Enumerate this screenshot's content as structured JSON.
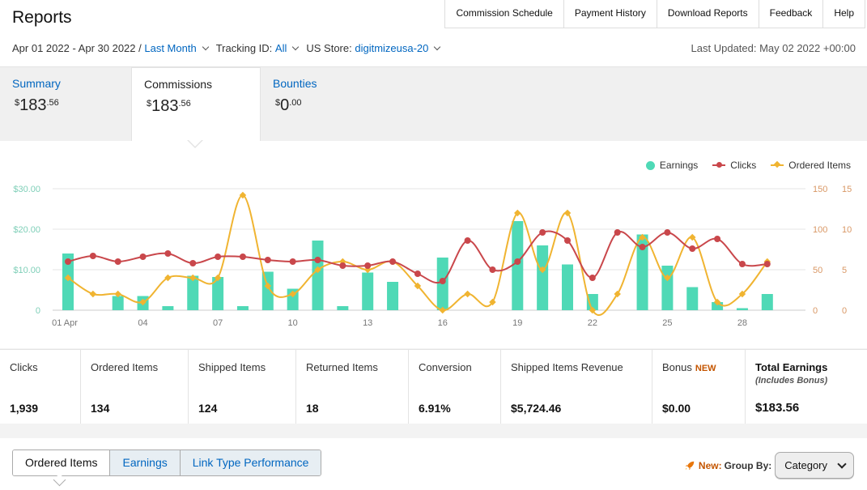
{
  "header": {
    "title": "Reports",
    "nav": [
      "Commission Schedule",
      "Payment History",
      "Download Reports",
      "Feedback",
      "Help"
    ],
    "date_range": "Apr 01 2022 - Apr 30 2022 /",
    "range_preset": "Last Month",
    "tracking_label": "Tracking ID:",
    "tracking_value": "All",
    "store_label": "US Store:",
    "store_value": "digitmizeusa-20",
    "last_updated": "Last Updated: May 02 2022 +00:00"
  },
  "summary_tabs": [
    {
      "label": "Summary",
      "currency": "$",
      "whole": "183",
      "cents": ".56"
    },
    {
      "label": "Commissions",
      "currency": "$",
      "whole": "183",
      "cents": ".56"
    },
    {
      "label": "Bounties",
      "currency": "$",
      "whole": "0",
      "cents": ".00"
    }
  ],
  "legend": {
    "earnings": "Earnings",
    "clicks": "Clicks",
    "ordered": "Ordered Items"
  },
  "colors": {
    "earnings": "#4fd9b6",
    "clicks": "#c9474b",
    "ordered": "#f0b431",
    "link": "#0066c0",
    "accent": "#c45500"
  },
  "chart_data": {
    "type": "bar",
    "x_ticks": [
      "01 Apr",
      "04",
      "07",
      "10",
      "13",
      "16",
      "19",
      "22",
      "25",
      "28"
    ],
    "days": [
      1,
      2,
      3,
      4,
      5,
      6,
      7,
      8,
      9,
      10,
      11,
      12,
      13,
      14,
      15,
      16,
      17,
      18,
      19,
      20,
      21,
      22,
      23,
      24,
      25,
      26,
      27,
      28,
      29,
      30
    ],
    "y_left_ticks": [
      "$30.00",
      "$20.00",
      "$10.00",
      "0"
    ],
    "y_right1_ticks": [
      "150",
      "100",
      "50",
      "0"
    ],
    "y_right2_ticks": [
      "15",
      "10",
      "5",
      "0"
    ],
    "series": [
      {
        "name": "Earnings",
        "axis": "left",
        "ylim": [
          0,
          30
        ],
        "values": [
          14,
          0,
          3.5,
          3.5,
          1,
          8.5,
          8.2,
          1,
          9.5,
          5.3,
          17.2,
          1,
          9.3,
          7,
          0,
          13,
          0,
          0,
          22,
          16,
          11.3,
          4,
          0,
          18.7,
          11,
          5.7,
          2,
          0.5,
          4,
          0
        ]
      },
      {
        "name": "Clicks",
        "axis": "right1",
        "ylim": [
          0,
          150
        ],
        "values": [
          60,
          67,
          60,
          66,
          70,
          58,
          66,
          66,
          62,
          60,
          62,
          55,
          55,
          60,
          45,
          36,
          86,
          50,
          60,
          96,
          86,
          40,
          96,
          78,
          96,
          76,
          88,
          57,
          57,
          null
        ]
      },
      {
        "name": "Ordered Items",
        "axis": "right2",
        "ylim": [
          0,
          15
        ],
        "values": [
          4,
          2,
          2,
          1,
          4,
          4,
          4,
          14.2,
          3,
          2,
          5,
          6,
          5,
          6,
          3,
          0,
          2,
          1,
          12,
          5,
          12,
          0,
          2,
          9,
          4,
          9,
          1,
          2,
          6,
          null
        ]
      }
    ]
  },
  "stats": [
    {
      "label": "Clicks",
      "value": "1,939"
    },
    {
      "label": "Ordered Items",
      "value": "134"
    },
    {
      "label": "Shipped Items",
      "value": "124"
    },
    {
      "label": "Returned Items",
      "value": "18"
    },
    {
      "label": "Conversion",
      "value": "6.91%"
    },
    {
      "label": "Shipped Items Revenue",
      "value": "$5,724.46"
    },
    {
      "label": "Bonus",
      "badge": "NEW",
      "value": "$0.00"
    },
    {
      "label": "Total Earnings",
      "sub": "(Includes Bonus)",
      "value": "$183.56"
    }
  ],
  "bottom_tabs": [
    "Ordered Items",
    "Earnings",
    "Link Type Performance"
  ],
  "group_by": {
    "new_label": "New:",
    "label": "Group By:",
    "value": "Category"
  }
}
